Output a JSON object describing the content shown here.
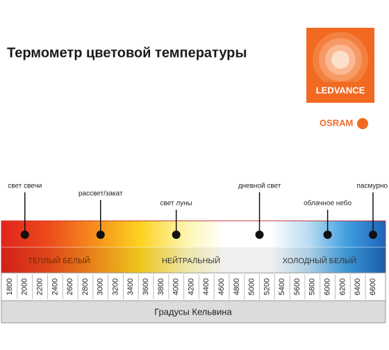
{
  "header": {
    "title": "Термометр цветовой температуры"
  },
  "logo": {
    "brand": "LEDVANCE",
    "sub_brand": "OSRAM"
  },
  "scale": {
    "min": 1800,
    "max": 6600,
    "ticks": [
      1800,
      2000,
      2200,
      2400,
      2600,
      2800,
      3000,
      3200,
      3400,
      3600,
      3800,
      4000,
      4200,
      4400,
      4600,
      4800,
      5000,
      5200,
      5400,
      5600,
      5800,
      6000,
      6200,
      6400,
      6600
    ],
    "axis_label": "Градусы Кельвина"
  },
  "zones": [
    {
      "label": "ТЕПЛЫЙ БЕЛЫЙ"
    },
    {
      "label": "НЕЙТРАЛЬНЫЙ"
    },
    {
      "label": "ХОЛОДНЫЙ БЕЛЫЙ"
    }
  ],
  "markers": [
    {
      "label": "свет свечи",
      "value": 2000
    },
    {
      "label": "рассвет/закат",
      "value": 3000
    },
    {
      "label": "свет луны",
      "value": 4000
    },
    {
      "label": "дневной свет",
      "value": 5100
    },
    {
      "label": "облачное небо",
      "value": 6000
    },
    {
      "label": "пасмурно",
      "value": 6600
    }
  ]
}
